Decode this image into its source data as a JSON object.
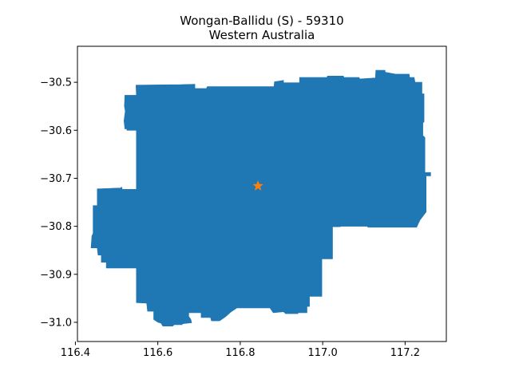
{
  "title": {
    "line1": "Wongan-Ballidu (S) - 59310",
    "line2": "Western Australia"
  },
  "colors": {
    "region_fill": "#1f77b4",
    "marker": "#ff7f0e",
    "axes": "#000000",
    "background": "#ffffff"
  },
  "chart_data": {
    "type": "map",
    "title": "Wongan-Ballidu (S) - 59310\nWestern Australia",
    "xlim": [
      116.405,
      117.3
    ],
    "ylim": [
      -31.04,
      -30.425
    ],
    "x_ticks": [
      116.4,
      116.6,
      116.8,
      117.0,
      117.2
    ],
    "x_tick_labels": [
      "116.4",
      "116.6",
      "116.8",
      "117.0",
      "117.2"
    ],
    "y_ticks": [
      -30.5,
      -30.6,
      -30.7,
      -30.8,
      -30.9,
      -31.0
    ],
    "y_tick_labels": [
      "−30.5",
      "−30.6",
      "−30.7",
      "−30.8",
      "−30.9",
      "−31.0"
    ],
    "grid": false,
    "region": {
      "name": "Wongan-Ballidu (S)",
      "boundary": [
        [
          116.548,
          -30.527
        ],
        [
          116.547,
          -30.506
        ],
        [
          116.655,
          -30.505
        ],
        [
          116.69,
          -30.504
        ],
        [
          116.69,
          -30.513
        ],
        [
          116.718,
          -30.513
        ],
        [
          116.72,
          -30.509
        ],
        [
          116.882,
          -30.509
        ],
        [
          116.883,
          -30.499
        ],
        [
          116.905,
          -30.496
        ],
        [
          116.905,
          -30.501
        ],
        [
          116.944,
          -30.501
        ],
        [
          116.944,
          -30.49
        ],
        [
          117.01,
          -30.49
        ],
        [
          117.012,
          -30.487
        ],
        [
          117.05,
          -30.487
        ],
        [
          117.052,
          -30.49
        ],
        [
          117.088,
          -30.49
        ],
        [
          117.09,
          -30.493
        ],
        [
          117.128,
          -30.491
        ],
        [
          117.129,
          -30.475
        ],
        [
          117.151,
          -30.475
        ],
        [
          117.152,
          -30.479
        ],
        [
          117.177,
          -30.483
        ],
        [
          117.21,
          -30.483
        ],
        [
          117.211,
          -30.49
        ],
        [
          117.222,
          -30.49
        ],
        [
          117.224,
          -30.5
        ],
        [
          117.241,
          -30.5
        ],
        [
          117.241,
          -30.524
        ],
        [
          117.246,
          -30.524
        ],
        [
          117.246,
          -30.582
        ],
        [
          117.243,
          -30.585
        ],
        [
          117.243,
          -30.611
        ],
        [
          117.248,
          -30.615
        ],
        [
          117.248,
          -30.688
        ],
        [
          117.262,
          -30.688
        ],
        [
          117.262,
          -30.695
        ],
        [
          117.251,
          -30.695
        ],
        [
          117.251,
          -30.77
        ],
        [
          117.236,
          -30.787
        ],
        [
          117.228,
          -30.802
        ],
        [
          117.11,
          -30.802
        ],
        [
          117.108,
          -30.8
        ],
        [
          117.044,
          -30.8
        ],
        [
          117.042,
          -30.801
        ],
        [
          117.024,
          -30.801
        ],
        [
          117.024,
          -30.868
        ],
        [
          116.998,
          -30.868
        ],
        [
          116.998,
          -30.946
        ],
        [
          116.968,
          -30.946
        ],
        [
          116.968,
          -30.967
        ],
        [
          116.962,
          -30.967
        ],
        [
          116.962,
          -30.98
        ],
        [
          116.94,
          -30.98
        ],
        [
          116.94,
          -30.982
        ],
        [
          116.91,
          -30.982
        ],
        [
          116.905,
          -30.978
        ],
        [
          116.88,
          -30.98
        ],
        [
          116.872,
          -30.97
        ],
        [
          116.792,
          -30.97
        ],
        [
          116.778,
          -30.978
        ],
        [
          116.765,
          -30.988
        ],
        [
          116.75,
          -30.997
        ],
        [
          116.73,
          -30.997
        ],
        [
          116.728,
          -30.99
        ],
        [
          116.705,
          -30.99
        ],
        [
          116.705,
          -30.98
        ],
        [
          116.675,
          -30.98
        ],
        [
          116.675,
          -30.988
        ],
        [
          116.68,
          -30.994
        ],
        [
          116.682,
          -31.001
        ],
        [
          116.66,
          -31.003
        ],
        [
          116.659,
          -31.005
        ],
        [
          116.64,
          -31.005
        ],
        [
          116.636,
          -31.008
        ],
        [
          116.612,
          -31.008
        ],
        [
          116.608,
          -31.002
        ],
        [
          116.6,
          -31.0
        ],
        [
          116.59,
          -30.994
        ],
        [
          116.59,
          -30.977
        ],
        [
          116.575,
          -30.977
        ],
        [
          116.573,
          -30.96
        ],
        [
          116.548,
          -30.959
        ],
        [
          116.548,
          -30.887
        ],
        [
          116.475,
          -30.887
        ],
        [
          116.475,
          -30.875
        ],
        [
          116.463,
          -30.875
        ],
        [
          116.463,
          -30.86
        ],
        [
          116.455,
          -30.86
        ],
        [
          116.453,
          -30.845
        ],
        [
          116.438,
          -30.845
        ],
        [
          116.44,
          -30.82
        ],
        [
          116.443,
          -30.815
        ],
        [
          116.443,
          -30.757
        ],
        [
          116.453,
          -30.757
        ],
        [
          116.453,
          -30.722
        ],
        [
          116.51,
          -30.72
        ],
        [
          116.512,
          -30.718
        ],
        [
          116.514,
          -30.723
        ],
        [
          116.548,
          -30.723
        ],
        [
          116.548,
          -30.6
        ],
        [
          116.525,
          -30.6
        ],
        [
          116.525,
          -30.597
        ],
        [
          116.52,
          -30.597
        ],
        [
          116.518,
          -30.58
        ],
        [
          116.521,
          -30.56
        ],
        [
          116.519,
          -30.55
        ],
        [
          116.52,
          -30.527
        ]
      ]
    },
    "marker": {
      "type": "star",
      "x": 116.843,
      "y": -30.716
    }
  }
}
